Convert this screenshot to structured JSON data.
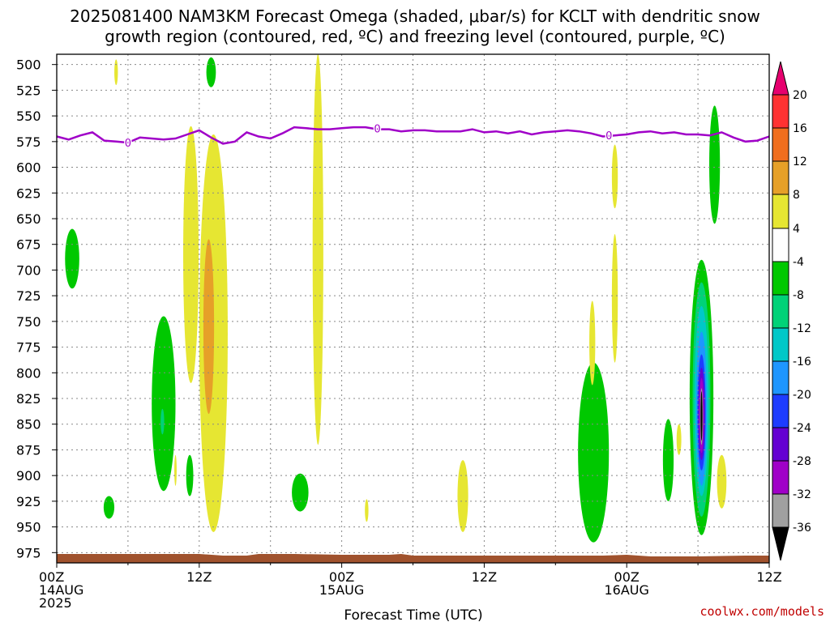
{
  "title": {
    "line1": "2025081400 NAM3KM Forecast Omega (shaded, μbar/s) for KCLT with dendritic snow",
    "line2": "growth region (contoured, red, ºC) and freezing level (contoured, purple, ºC)"
  },
  "credit": "coolwx.com/models",
  "colors": {
    "ground": "#a0522d",
    "freezing_line": "#a000c8",
    "credit": "#c00000"
  },
  "chart_data": {
    "type": "heatmap",
    "title": "2025081400 NAM3KM Forecast Omega (shaded, μbar/s) for KCLT with dendritic snow growth region (contoured, red, ºC) and freezing level (contoured, purple, ºC)",
    "xlabel": "Forecast Time (UTC)",
    "ylabel": "",
    "x_range_hours": [
      0,
      60
    ],
    "y_range_hpa": [
      490,
      985
    ],
    "y_ticks": [
      500,
      525,
      550,
      575,
      600,
      625,
      650,
      675,
      700,
      725,
      750,
      775,
      800,
      825,
      850,
      875,
      900,
      925,
      950,
      975
    ],
    "x_ticks": [
      {
        "hour": 0,
        "lines": [
          "00Z",
          "14AUG",
          "2025"
        ]
      },
      {
        "hour": 12,
        "lines": [
          "12Z"
        ]
      },
      {
        "hour": 24,
        "lines": [
          "00Z",
          "15AUG"
        ]
      },
      {
        "hour": 36,
        "lines": [
          "12Z"
        ]
      },
      {
        "hour": 48,
        "lines": [
          "00Z",
          "16AUG"
        ]
      },
      {
        "hour": 60,
        "lines": [
          "12Z"
        ]
      }
    ],
    "grid": true,
    "colorbar": {
      "labels": [
        "20",
        "16",
        "12",
        "8",
        "4",
        "-4",
        "-8",
        "-12",
        "-16",
        "-20",
        "-24",
        "-28",
        "-32",
        "-36"
      ],
      "bands": [
        {
          "range": "> 20",
          "color": "#e6006e"
        },
        {
          "range": "16 to 20",
          "color": "#ff3232"
        },
        {
          "range": "12 to 16",
          "color": "#f06e1e"
        },
        {
          "range": "8 to 12",
          "color": "#e6a028"
        },
        {
          "range": "4 to 8",
          "color": "#e6e632"
        },
        {
          "range": "-4 to 4",
          "color": "#ffffff"
        },
        {
          "range": "-8 to -4",
          "color": "#00c800"
        },
        {
          "range": "-12 to -8",
          "color": "#00d278"
        },
        {
          "range": "-16 to -12",
          "color": "#00c8c8"
        },
        {
          "range": "-20 to -16",
          "color": "#1e96ff"
        },
        {
          "range": "-24 to -20",
          "color": "#1e3cff"
        },
        {
          "range": "-28 to -24",
          "color": "#6400d2"
        },
        {
          "range": "-32 to -28",
          "color": "#a000c8"
        },
        {
          "range": "-36 to -32",
          "color": "#a0a0a0"
        },
        {
          "range": "< -36",
          "color": "#000000"
        }
      ]
    },
    "freezing_level_hpa": [
      [
        0,
        570
      ],
      [
        1,
        573
      ],
      [
        2,
        569
      ],
      [
        3,
        566
      ],
      [
        4,
        574
      ],
      [
        5,
        575
      ],
      [
        6,
        576
      ],
      [
        7,
        571
      ],
      [
        8,
        572
      ],
      [
        9,
        573
      ],
      [
        10,
        572
      ],
      [
        11,
        568
      ],
      [
        12,
        564
      ],
      [
        13,
        571
      ],
      [
        14,
        577
      ],
      [
        15,
        575
      ],
      [
        16,
        566
      ],
      [
        17,
        570
      ],
      [
        18,
        572
      ],
      [
        19,
        567
      ],
      [
        20,
        561
      ],
      [
        21,
        562
      ],
      [
        22,
        563
      ],
      [
        23,
        563
      ],
      [
        24,
        562
      ],
      [
        25,
        561
      ],
      [
        26,
        561
      ],
      [
        27,
        563
      ],
      [
        28,
        563
      ],
      [
        29,
        565
      ],
      [
        30,
        564
      ],
      [
        31,
        564
      ],
      [
        32,
        565
      ],
      [
        33,
        565
      ],
      [
        34,
        565
      ],
      [
        35,
        563
      ],
      [
        36,
        566
      ],
      [
        37,
        565
      ],
      [
        38,
        567
      ],
      [
        39,
        565
      ],
      [
        40,
        568
      ],
      [
        41,
        566
      ],
      [
        42,
        565
      ],
      [
        43,
        564
      ],
      [
        44,
        565
      ],
      [
        45,
        567
      ],
      [
        46,
        570
      ],
      [
        47,
        569
      ],
      [
        48,
        568
      ],
      [
        49,
        566
      ],
      [
        50,
        565
      ],
      [
        51,
        567
      ],
      [
        52,
        566
      ],
      [
        53,
        568
      ],
      [
        54,
        568
      ],
      [
        55,
        569
      ],
      [
        56,
        566
      ],
      [
        57,
        571
      ],
      [
        58,
        575
      ],
      [
        59,
        574
      ],
      [
        60,
        570
      ]
    ],
    "freezing_labels": [
      {
        "hour": 6,
        "hpa": 576,
        "text": "0"
      },
      {
        "hour": 27,
        "hpa": 562,
        "text": "0"
      },
      {
        "hour": 46.5,
        "hpa": 569,
        "text": "0"
      }
    ],
    "omega_regions": [
      {
        "band": "-8 to -4",
        "hour": 1.3,
        "hpa_top": 660,
        "hpa_bottom": 718,
        "hours_wide": 1.2
      },
      {
        "band": "4 to 8",
        "hour": 5.0,
        "hpa_top": 495,
        "hpa_bottom": 520,
        "hours_wide": 0.3
      },
      {
        "band": "-8 to -4",
        "hour": 13.0,
        "hpa_top": 493,
        "hpa_bottom": 522,
        "hours_wide": 0.8
      },
      {
        "band": "4 to 8",
        "hour": 11.3,
        "hpa_top": 560,
        "hpa_bottom": 810,
        "hours_wide": 1.3
      },
      {
        "band": "4 to 8",
        "hour": 13.2,
        "hpa_top": 568,
        "hpa_bottom": 955,
        "hours_wide": 2.4
      },
      {
        "band": "8 to 12",
        "hour": 12.8,
        "hpa_top": 670,
        "hpa_bottom": 840,
        "hours_wide": 0.9
      },
      {
        "band": "4 to 8",
        "hour": 22.0,
        "hpa_top": 490,
        "hpa_bottom": 870,
        "hours_wide": 0.9
      },
      {
        "band": "-8 to -4",
        "hour": 9.0,
        "hpa_top": 745,
        "hpa_bottom": 915,
        "hours_wide": 2.0
      },
      {
        "band": "-12 to -8",
        "hour": 8.9,
        "hpa_top": 835,
        "hpa_bottom": 860,
        "hours_wide": 0.3
      },
      {
        "band": "-8 to -4",
        "hour": 4.4,
        "hpa_top": 920,
        "hpa_bottom": 942,
        "hours_wide": 0.9
      },
      {
        "band": "4 to 8",
        "hour": 10.0,
        "hpa_top": 880,
        "hpa_bottom": 910,
        "hours_wide": 0.2
      },
      {
        "band": "-8 to -4",
        "hour": 11.2,
        "hpa_top": 880,
        "hpa_bottom": 920,
        "hours_wide": 0.6
      },
      {
        "band": "-8 to -4",
        "hour": 20.5,
        "hpa_top": 898,
        "hpa_bottom": 935,
        "hours_wide": 1.4
      },
      {
        "band": "4 to 8",
        "hour": 26.1,
        "hpa_top": 923,
        "hpa_bottom": 945,
        "hours_wide": 0.3
      },
      {
        "band": "4 to 8",
        "hour": 34.2,
        "hpa_top": 885,
        "hpa_bottom": 955,
        "hours_wide": 0.9
      },
      {
        "band": "-8 to -4",
        "hour": 45.2,
        "hpa_top": 790,
        "hpa_bottom": 965,
        "hours_wide": 2.6
      },
      {
        "band": "4 to 8",
        "hour": 45.1,
        "hpa_top": 730,
        "hpa_bottom": 812,
        "hours_wide": 0.5
      },
      {
        "band": "4 to 8",
        "hour": 47.0,
        "hpa_top": 578,
        "hpa_bottom": 640,
        "hours_wide": 0.5
      },
      {
        "band": "4 to 8",
        "hour": 47.0,
        "hpa_top": 665,
        "hpa_bottom": 790,
        "hours_wide": 0.5
      },
      {
        "band": "-8 to -4",
        "hour": 51.5,
        "hpa_top": 845,
        "hpa_bottom": 925,
        "hours_wide": 0.9
      },
      {
        "band": "4 to 8",
        "hour": 52.4,
        "hpa_top": 850,
        "hpa_bottom": 880,
        "hours_wide": 0.4
      },
      {
        "band": "-8 to -4",
        "hour": 55.4,
        "hpa_top": 540,
        "hpa_bottom": 655,
        "hours_wide": 0.9
      },
      {
        "band": "-8 to -4",
        "hour": 54.3,
        "hpa_top": 690,
        "hpa_bottom": 958,
        "hours_wide": 2.0
      },
      {
        "band": "-12 to -8",
        "hour": 54.3,
        "hpa_top": 712,
        "hpa_bottom": 940,
        "hours_wide": 1.5
      },
      {
        "band": "-16 to -12",
        "hour": 54.3,
        "hpa_top": 735,
        "hpa_bottom": 920,
        "hours_wide": 1.2
      },
      {
        "band": "-20 to -16",
        "hour": 54.3,
        "hpa_top": 760,
        "hpa_bottom": 910,
        "hours_wide": 0.9
      },
      {
        "band": "-24 to -20",
        "hour": 54.3,
        "hpa_top": 782,
        "hpa_bottom": 895,
        "hours_wide": 0.7
      },
      {
        "band": "-28 to -24",
        "hour": 54.3,
        "hpa_top": 795,
        "hpa_bottom": 885,
        "hours_wide": 0.55
      },
      {
        "band": "-32 to -28",
        "hour": 54.3,
        "hpa_top": 805,
        "hpa_bottom": 878,
        "hours_wide": 0.4
      },
      {
        "band": "-36 to -32",
        "hour": 54.3,
        "hpa_top": 815,
        "hpa_bottom": 870,
        "hours_wide": 0.25
      },
      {
        "band": "< -36",
        "hour": 54.3,
        "hpa_top": 818,
        "hpa_bottom": 866,
        "hours_wide": 0.15
      },
      {
        "band": "4 to 8",
        "hour": 56.0,
        "hpa_top": 880,
        "hpa_bottom": 932,
        "hours_wide": 0.8
      }
    ]
  }
}
